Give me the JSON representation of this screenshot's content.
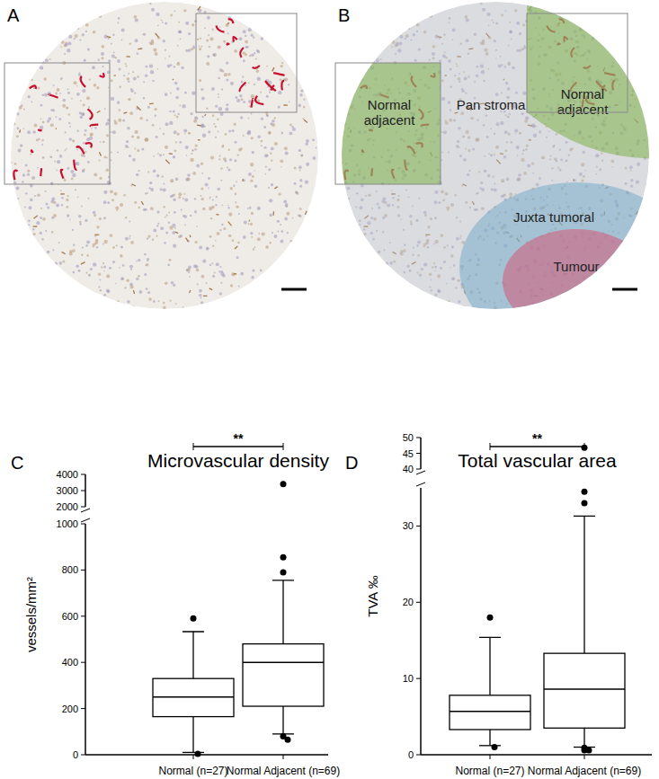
{
  "image_panels": [
    {
      "panel": "A"
    },
    {
      "panel": "B",
      "regions": [
        "Normal adjacent",
        "Normal adjacent",
        "Pan stroma",
        "Juxta tumoral",
        "Tumour"
      ]
    }
  ],
  "chart_data": [
    {
      "type": "box",
      "panel": "C",
      "title": "Microvascular density",
      "y_label": "vessels/mm²",
      "categories": [
        "Normal (n=27)",
        "Normal Adjacent (n=69)"
      ],
      "boxes": [
        {
          "whisker_low": 10,
          "q1": 165,
          "median": 250,
          "q3": 330,
          "whisker_high": 533,
          "outliers": [
            590,
            4
          ]
        },
        {
          "whisker_low": 90,
          "q1": 210,
          "median": 400,
          "q3": 480,
          "whisker_high": 755,
          "outliers": [
            855,
            790,
            80,
            65,
            3400
          ]
        }
      ],
      "ylim": [
        0,
        1000
      ],
      "yticks": [
        0,
        200,
        400,
        600,
        800,
        1000
      ],
      "y_break": {
        "ylim": [
          2000,
          4000
        ],
        "yticks": [
          2000,
          3000,
          4000
        ]
      },
      "annotations": [
        {
          "text": "**",
          "between": [
            0,
            1
          ]
        }
      ]
    },
    {
      "type": "box",
      "panel": "D",
      "title": "Total vascular area",
      "y_label": "TVA ‰",
      "categories": [
        "Normal (n=27)",
        "Normal Adjacent (n=69)"
      ],
      "boxes": [
        {
          "whisker_low": 1.2,
          "q1": 3.3,
          "median": 5.7,
          "q3": 7.8,
          "whisker_high": 15.4,
          "outliers": [
            18,
            1.0
          ]
        },
        {
          "whisker_low": 1.0,
          "q1": 3.5,
          "median": 8.6,
          "q3": 13.3,
          "whisker_high": 31.3,
          "outliers": [
            34.5,
            33,
            0.9,
            0.6,
            0.6,
            46.8
          ]
        }
      ],
      "ylim": [
        0,
        35
      ],
      "yticks": [
        0,
        10,
        20,
        30
      ],
      "y_break": {
        "ylim": [
          40,
          50
        ],
        "yticks": [
          40,
          45,
          50
        ]
      },
      "annotations": [
        {
          "text": "**",
          "between": [
            0,
            1
          ]
        }
      ]
    }
  ]
}
